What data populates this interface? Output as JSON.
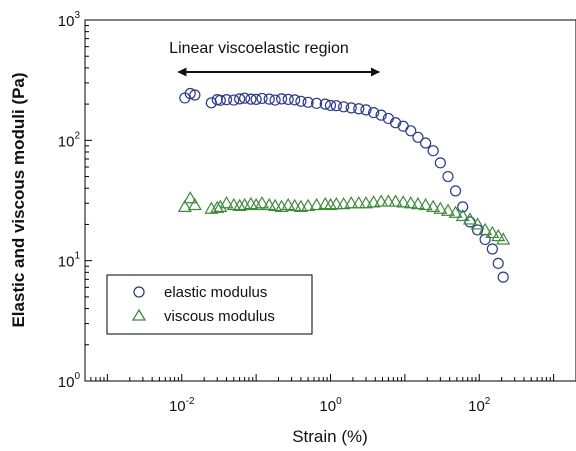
{
  "chart_data": {
    "type": "scatter",
    "x_scale": "log",
    "y_scale": "log",
    "xlim": [
      0.0005,
      2000
    ],
    "ylim": [
      1,
      1000
    ],
    "x_ticks": [
      {
        "value": 0.01,
        "base": "10",
        "exp": "-2"
      },
      {
        "value": 1,
        "base": "10",
        "exp": "0"
      },
      {
        "value": 100,
        "base": "10",
        "exp": "2"
      }
    ],
    "y_ticks": [
      {
        "value": 1,
        "base": "10",
        "exp": "0"
      },
      {
        "value": 10,
        "base": "10",
        "exp": "1"
      },
      {
        "value": 100,
        "base": "10",
        "exp": "2"
      },
      {
        "value": 1000,
        "base": "10",
        "exp": "3"
      }
    ],
    "xlabel": "Strain (%)",
    "ylabel": "Elastic and viscous moduli (Pa)",
    "grid": false,
    "legend_position": "bottom-left",
    "annotation": {
      "text": "Linear viscoelastic region",
      "arrow_from": 0.009,
      "arrow_to": 4.5
    },
    "series": [
      {
        "name": "elastic modulus",
        "marker": "circle",
        "color": "#2d3a8c",
        "x": [
          0.011,
          0.013,
          0.015,
          0.025,
          0.03,
          0.033,
          0.04,
          0.05,
          0.06,
          0.07,
          0.085,
          0.1,
          0.12,
          0.15,
          0.18,
          0.22,
          0.27,
          0.33,
          0.4,
          0.5,
          0.65,
          0.85,
          1.0,
          1.2,
          1.5,
          1.9,
          2.4,
          3.0,
          3.8,
          4.8,
          6.0,
          7.5,
          9.5,
          12,
          15,
          19,
          24,
          30,
          38,
          48,
          60,
          75,
          95,
          120,
          150,
          180,
          210
        ],
        "y": [
          225,
          245,
          238,
          205,
          218,
          215,
          218,
          216,
          221,
          224,
          220,
          219,
          223,
          220,
          216,
          221,
          219,
          217,
          211,
          207,
          203,
          200,
          195,
          194,
          190,
          186,
          183,
          179,
          170,
          162,
          152,
          140,
          131,
          120,
          106,
          95,
          82,
          65,
          50,
          38,
          28,
          21,
          18,
          15,
          12.5,
          9.5,
          7.3
        ]
      },
      {
        "name": "viscous modulus",
        "marker": "triangle",
        "color": "#3e8a3a",
        "x": [
          0.011,
          0.013,
          0.015,
          0.025,
          0.03,
          0.033,
          0.04,
          0.05,
          0.06,
          0.07,
          0.085,
          0.1,
          0.12,
          0.15,
          0.18,
          0.22,
          0.27,
          0.33,
          0.4,
          0.5,
          0.65,
          0.85,
          1.0,
          1.2,
          1.5,
          1.9,
          2.4,
          3.0,
          3.8,
          4.8,
          6.0,
          7.5,
          9.5,
          12,
          15,
          19,
          24,
          30,
          38,
          48,
          60,
          75,
          95,
          120,
          150,
          180,
          210
        ],
        "y": [
          28,
          33,
          29,
          27,
          27.5,
          28,
          30,
          29,
          28.5,
          29,
          29.5,
          29,
          30,
          29,
          28.5,
          28,
          29,
          28.5,
          28,
          28.5,
          29,
          29.5,
          29,
          29.5,
          29.5,
          30,
          30,
          30,
          30.5,
          31,
          31,
          31,
          30.5,
          30,
          29.5,
          29,
          28,
          27,
          26,
          25,
          23.5,
          22,
          20,
          18,
          17,
          16,
          15
        ]
      }
    ]
  }
}
